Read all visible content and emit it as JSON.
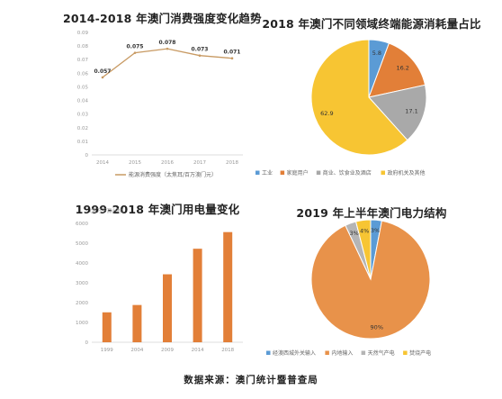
{
  "source_note": "数据来源：澳门统计暨普查局",
  "chart_data": [
    {
      "id": "energy-intensity",
      "type": "line",
      "title": "2014-2018 年澳门消费强度变化趋势",
      "categories": [
        "2014",
        "2015",
        "2016",
        "2017",
        "2018"
      ],
      "series": [
        {
          "name": "能源消费强度（太焦耳/百万澳门元）",
          "values": [
            0.057,
            0.075,
            0.078,
            0.073,
            0.071
          ],
          "color": "#c89a63"
        }
      ],
      "data_labels": [
        "0.057",
        "0.075",
        "0.078",
        "0.073",
        "0.071"
      ],
      "ylim": [
        0,
        0.09
      ],
      "yticks": [
        "0",
        "0.01",
        "0.02",
        "0.03",
        "0.04",
        "0.05",
        "0.06",
        "0.07",
        "0.08",
        "0.09"
      ],
      "legend": "bottom",
      "grid": false
    },
    {
      "id": "energy-by-sector-2018",
      "type": "pie",
      "title": "2018 年澳门不同领域终端能源消耗量占比",
      "slices": [
        {
          "label": "工业",
          "value": 5.8,
          "text": "5.8",
          "color": "#5b9bd5"
        },
        {
          "label": "家庭用户",
          "value": 16.2,
          "text": "16.2",
          "color": "#e27f38"
        },
        {
          "label": "商业、饮食业及酒店",
          "value": 17.1,
          "text": "17.1",
          "color": "#a9a9a9"
        },
        {
          "label": "政府机关及其他",
          "value": 62.9,
          "text": "62.9",
          "color": "#f7c533"
        }
      ],
      "legend": "bottom"
    },
    {
      "id": "electricity-consumption",
      "type": "bar",
      "title": "1999-2018 年澳门用电量变化",
      "unit": "(百万千瓦小时)",
      "categories": [
        "1999",
        "2004",
        "2009",
        "2014",
        "2018"
      ],
      "values": [
        1510,
        1880,
        3430,
        4720,
        5560
      ],
      "color": "#e27f38",
      "ylim": [
        0,
        6000
      ],
      "yticks": [
        "0",
        "1000",
        "2000",
        "3000",
        "4000",
        "5000",
        "6000"
      ],
      "grid": false
    },
    {
      "id": "electricity-structure-2019h1",
      "type": "pie",
      "title": "2019 年上半年澳门电力结构",
      "slices": [
        {
          "label": "经澳西城外关输入",
          "value": 3,
          "text": "3%",
          "color": "#5b9bd5"
        },
        {
          "label": "内地输入",
          "value": 90,
          "text": "90%",
          "color": "#e8924a"
        },
        {
          "label": "天然气产电",
          "value": 3,
          "text": "3%",
          "color": "#b5b5b5"
        },
        {
          "label": "焚烧产电",
          "value": 4,
          "text": "4%",
          "color": "#f7c533"
        }
      ],
      "legend": "bottom"
    }
  ]
}
